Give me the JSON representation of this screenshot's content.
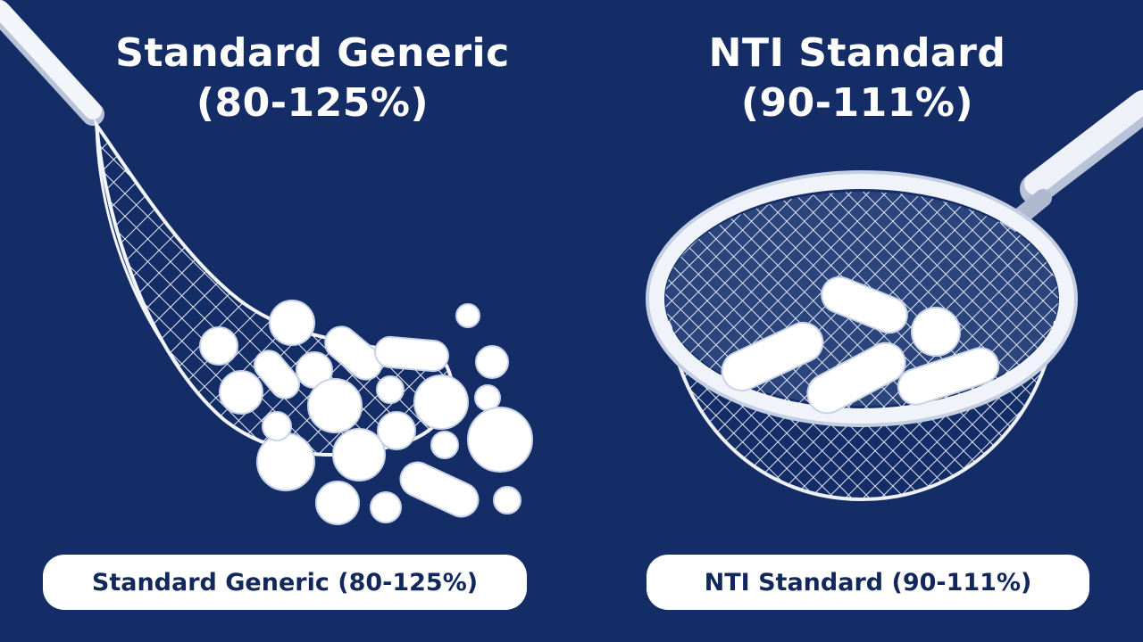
{
  "left_panel": {
    "title_line1": "Standard Generic",
    "title_line2": "(80-125%)",
    "label": "Standard Generic (80-125%)"
  },
  "right_panel": {
    "title_line1": "NTI Standard",
    "title_line2": "(90-111%)",
    "label": "NTI Standard (90-111%)"
  },
  "colors": {
    "background": "#152d66",
    "text": "#ffffff",
    "label_text": "#12285c"
  }
}
